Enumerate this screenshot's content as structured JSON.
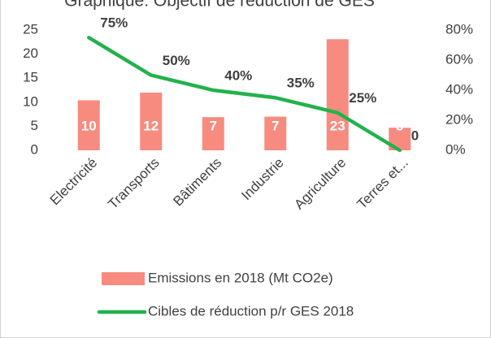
{
  "chart_data": {
    "type": "bar_line",
    "title": "Graphique: Objectif de réduction de GES",
    "categories": [
      "Electricité",
      "Transports",
      "Bâtiments",
      "Industrie",
      "Agriculture",
      "Terres et..."
    ],
    "series": [
      {
        "name": "Emissions en 2018 (Mt CO2e)",
        "type": "bar",
        "color": "#f78b80",
        "values": [
          10.4,
          12,
          6.9,
          7,
          23.1,
          4.7
        ],
        "value_labels": [
          "10",
          "12",
          "7",
          "7",
          "23",
          "5"
        ]
      },
      {
        "name": "Cibles de réduction p/r GES 2018",
        "type": "line",
        "axis": "y2",
        "color": "#22b24c",
        "values": [
          75,
          50,
          40,
          35,
          25,
          0
        ],
        "value_labels": [
          "75%",
          "50%",
          "40%",
          "35%",
          "25%",
          "0"
        ]
      }
    ],
    "ylim": [
      0,
      25
    ],
    "yticks": [
      0,
      5,
      10,
      15,
      20,
      25
    ],
    "y2lim": [
      0,
      80
    ],
    "y2ticks": [
      {
        "value": 0,
        "label": "0%"
      },
      {
        "value": 20,
        "label": "20%"
      },
      {
        "value": 40,
        "label": "40%"
      },
      {
        "value": 60,
        "label": "60%"
      },
      {
        "value": 80,
        "label": "80%"
      }
    ],
    "legend": "bottom"
  }
}
